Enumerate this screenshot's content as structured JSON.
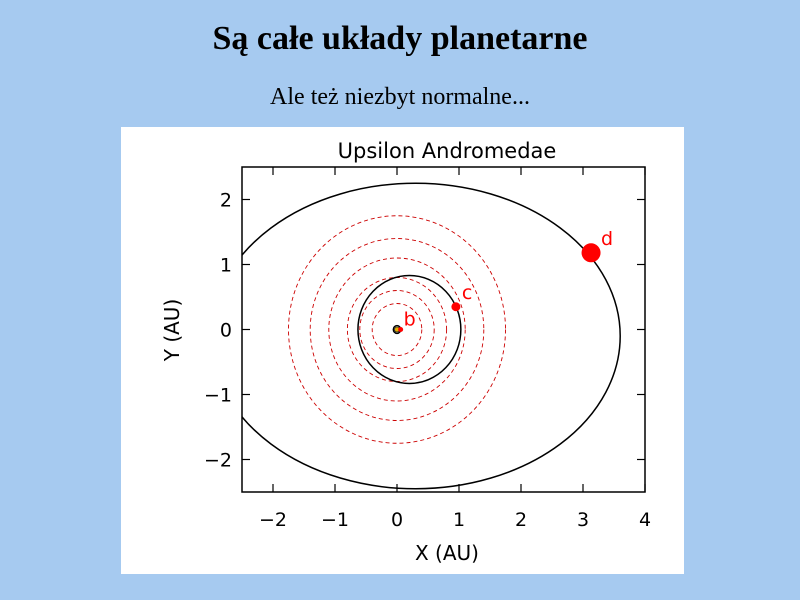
{
  "slide": {
    "title": "Są całe układy planetarne",
    "subtitle": "Ale też niezbyt normalne..."
  },
  "chart_data": {
    "type": "scatter",
    "title": "Upsilon Andromedae",
    "xlabel": "X (AU)",
    "ylabel": "Y (AU)",
    "xlim": [
      -2.5,
      4.0
    ],
    "ylim": [
      -2.5,
      2.5
    ],
    "xticks": [
      -2,
      -1,
      0,
      1,
      2,
      3,
      4
    ],
    "yticks": [
      -2,
      -1,
      0,
      1,
      2
    ],
    "grid": false,
    "star": {
      "x": 0.0,
      "y": 0.0,
      "color": "#e0b000"
    },
    "planets": [
      {
        "label": "b",
        "x": 0.059,
        "y": 0.0,
        "color": "#ff0000"
      },
      {
        "label": "c",
        "x": 0.95,
        "y": 0.35,
        "color": "#ff0000"
      },
      {
        "label": "d",
        "x": 3.13,
        "y": 1.18,
        "color": "#ff0000"
      }
    ],
    "orbits": [
      {
        "cx": 0.0,
        "cy": 0.0,
        "rx": 0.059,
        "ry": 0.059,
        "style": "solid",
        "color": "#000000"
      },
      {
        "cx": 0.2,
        "cy": 0.0,
        "rx": 0.83,
        "ry": 0.83,
        "style": "solid",
        "color": "#000000"
      },
      {
        "cx": 0.3,
        "cy": -0.1,
        "rx": 3.3,
        "ry": 2.35,
        "style": "solid",
        "color": "#000000"
      }
    ],
    "habitable_zone_rings": [
      {
        "r": 0.4
      },
      {
        "r": 0.6
      },
      {
        "r": 0.8
      },
      {
        "r": 1.1
      },
      {
        "r": 1.4
      },
      {
        "r": 1.75
      }
    ],
    "ring_color": "#cc0000"
  }
}
